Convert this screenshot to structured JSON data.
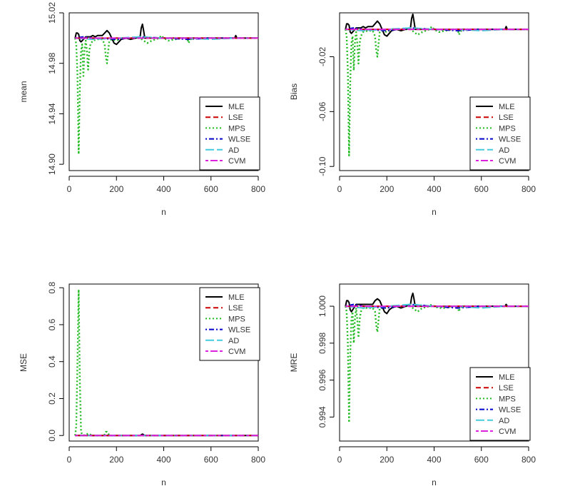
{
  "series_styles": [
    {
      "name": "MLE",
      "color": "#000000",
      "dash": "solid"
    },
    {
      "name": "LSE",
      "color": "#cc0000",
      "dash": "dashed"
    },
    {
      "name": "MPS",
      "color": "#22bb22",
      "dash": "dotted"
    },
    {
      "name": "WLSE",
      "color": "#0000cc",
      "dash": "dotdash"
    },
    {
      "name": "AD",
      "color": "#44ccdd",
      "dash": "longdash"
    },
    {
      "name": "CVM",
      "color": "#dd22dd",
      "dash": "twodash"
    }
  ],
  "chart_data": [
    {
      "type": "line",
      "xlabel": "n",
      "ylabel": "mean",
      "xlim": [
        0,
        800
      ],
      "ylim": [
        14.895,
        15.02
      ],
      "xticks": [
        0,
        200,
        400,
        600,
        800
      ],
      "yticks": [
        14.9,
        14.94,
        14.98,
        15.02
      ],
      "ytick_labels": [
        "14.90",
        "14.94",
        "14.98",
        "15.02"
      ],
      "reference": 15.0,
      "legend_position": "bottom-right",
      "series": [
        {
          "name": "MLE",
          "x": [
            25,
            30,
            35,
            40,
            45,
            50,
            60,
            70,
            80,
            90,
            100,
            110,
            120,
            140,
            150,
            160,
            170,
            180,
            190,
            200,
            210,
            220,
            240,
            260,
            280,
            300,
            305,
            310,
            315,
            320,
            340,
            360,
            380,
            400,
            450,
            500,
            550,
            600,
            650,
            700,
            705,
            710,
            750,
            800
          ],
          "y": [
            15.0,
            15.004,
            15.004,
            15.003,
            14.998,
            14.997,
            14.999,
            15.001,
            15.001,
            15.001,
            15.002,
            15.001,
            15.002,
            15.002,
            15.004,
            15.006,
            15.004,
            15.0,
            14.996,
            14.995,
            14.997,
            14.999,
            15.0,
            14.999,
            15.0,
            15.001,
            15.008,
            15.011,
            15.006,
            15.0,
            15.0,
            15.0,
            15.0,
            15.0,
            15.0,
            15.0,
            15.0,
            15.0,
            15.0,
            15.0,
            15.002,
            15.0,
            15.0,
            15.0
          ]
        },
        {
          "name": "LSE",
          "x": [
            25,
            800
          ],
          "y": [
            15.0,
            15.0
          ]
        },
        {
          "name": "MPS",
          "x": [
            25,
            30,
            35,
            40,
            45,
            50,
            55,
            60,
            65,
            70,
            75,
            80,
            85,
            90,
            100,
            120,
            140,
            150,
            155,
            160,
            165,
            170,
            180,
            200,
            220,
            250,
            300,
            330,
            350,
            380,
            390,
            400,
            420,
            450,
            480,
            500,
            505,
            510,
            520,
            550,
            600,
            650,
            700,
            750,
            800
          ],
          "y": [
            15.0,
            14.995,
            14.97,
            14.908,
            14.96,
            14.99,
            14.995,
            14.97,
            14.99,
            14.998,
            14.99,
            14.975,
            14.99,
            14.995,
            14.998,
            14.999,
            14.999,
            14.995,
            14.985,
            14.98,
            14.99,
            14.998,
            14.999,
            14.998,
            15.0,
            15.0,
            15.0,
            14.996,
            14.998,
            15.0,
            15.002,
            15.0,
            14.998,
            14.999,
            15.0,
            15.0,
            14.996,
            14.998,
            15.0,
            15.0,
            15.0,
            15.0,
            15.0,
            15.0,
            15.0
          ]
        },
        {
          "name": "WLSE",
          "x": [
            25,
            60,
            100,
            200,
            300,
            400,
            500,
            600,
            700,
            800
          ],
          "y": [
            15.0,
            15.001,
            15.0,
            14.999,
            15.001,
            15.0,
            14.999,
            15.0,
            15.0,
            15.0
          ]
        },
        {
          "name": "AD",
          "x": [
            25,
            100,
            200,
            300,
            400,
            500,
            600,
            700,
            800
          ],
          "y": [
            15.0,
            14.999,
            15.0,
            15.001,
            15.0,
            15.0,
            14.999,
            15.0,
            15.0
          ]
        },
        {
          "name": "CVM",
          "x": [
            25,
            800
          ],
          "y": [
            15.0,
            15.0
          ]
        }
      ]
    },
    {
      "type": "line",
      "xlabel": "n",
      "ylabel": "Bias",
      "xlim": [
        0,
        800
      ],
      "ylim": [
        -0.103,
        0.012
      ],
      "xticks": [
        0,
        200,
        400,
        600,
        800
      ],
      "yticks": [
        -0.1,
        -0.06,
        -0.02
      ],
      "ytick_labels": [
        "-0.10",
        "-0.06",
        "-0.02"
      ],
      "reference": 0.0,
      "legend_position": "bottom-right",
      "series": [
        {
          "name": "MLE",
          "x": [
            25,
            30,
            35,
            40,
            45,
            50,
            60,
            70,
            80,
            90,
            100,
            110,
            120,
            140,
            150,
            160,
            170,
            180,
            190,
            200,
            210,
            220,
            240,
            260,
            280,
            300,
            305,
            310,
            315,
            320,
            340,
            360,
            380,
            400,
            450,
            500,
            550,
            600,
            650,
            700,
            705,
            710,
            750,
            800
          ],
          "y": [
            0.0,
            0.004,
            0.004,
            0.003,
            -0.002,
            -0.003,
            -0.001,
            0.001,
            0.001,
            0.001,
            0.002,
            0.001,
            0.002,
            0.002,
            0.004,
            0.006,
            0.004,
            0.0,
            -0.004,
            -0.005,
            -0.003,
            -0.001,
            0.0,
            -0.001,
            0.0,
            0.001,
            0.008,
            0.011,
            0.006,
            0.0,
            0.0,
            0.0,
            0.0,
            0.0,
            0.0,
            0.0,
            0.0,
            0.0,
            0.0,
            0.0,
            0.002,
            0.0,
            0.0,
            0.0
          ]
        },
        {
          "name": "LSE",
          "x": [
            25,
            800
          ],
          "y": [
            0.0,
            0.0
          ]
        },
        {
          "name": "MPS",
          "x": [
            25,
            30,
            35,
            40,
            45,
            50,
            55,
            60,
            65,
            70,
            75,
            80,
            85,
            90,
            100,
            120,
            140,
            150,
            155,
            160,
            165,
            170,
            180,
            200,
            220,
            250,
            300,
            330,
            350,
            380,
            390,
            400,
            420,
            450,
            480,
            500,
            505,
            510,
            520,
            550,
            600,
            650,
            700,
            750,
            800
          ],
          "y": [
            0.0,
            -0.005,
            -0.03,
            -0.092,
            -0.04,
            -0.01,
            -0.005,
            -0.03,
            -0.01,
            -0.002,
            -0.01,
            -0.025,
            -0.01,
            -0.005,
            -0.002,
            -0.001,
            -0.001,
            -0.005,
            -0.015,
            -0.02,
            -0.01,
            -0.002,
            -0.001,
            -0.002,
            0.0,
            0.0,
            0.0,
            -0.004,
            -0.002,
            0.0,
            0.002,
            0.0,
            -0.002,
            -0.001,
            0.0,
            0.0,
            -0.004,
            -0.002,
            0.0,
            0.0,
            0.0,
            0.0,
            0.0,
            0.0,
            0.0
          ]
        },
        {
          "name": "WLSE",
          "x": [
            25,
            60,
            100,
            200,
            300,
            400,
            500,
            600,
            700,
            800
          ],
          "y": [
            0.0,
            0.001,
            0.0,
            -0.001,
            0.001,
            0.0,
            -0.001,
            0.0,
            0.0,
            0.0
          ]
        },
        {
          "name": "AD",
          "x": [
            25,
            100,
            200,
            300,
            400,
            500,
            600,
            700,
            800
          ],
          "y": [
            0.0,
            -0.001,
            0.0,
            0.001,
            0.0,
            0.0,
            -0.001,
            0.0,
            0.0
          ]
        },
        {
          "name": "CVM",
          "x": [
            25,
            800
          ],
          "y": [
            0.0,
            0.0
          ]
        }
      ]
    },
    {
      "type": "line",
      "xlabel": "n",
      "ylabel": "MSE",
      "xlim": [
        0,
        800
      ],
      "ylim": [
        -0.03,
        0.82
      ],
      "xticks": [
        0,
        200,
        400,
        600,
        800
      ],
      "yticks": [
        0.0,
        0.2,
        0.4,
        0.6,
        0.8
      ],
      "ytick_labels": [
        "0.0",
        "0.2",
        "0.4",
        "0.6",
        "0.8"
      ],
      "reference": 0.0,
      "legend_position": "top-right",
      "series": [
        {
          "name": "MLE",
          "x": [
            25,
            100,
            200,
            300,
            305,
            310,
            315,
            320,
            400,
            500,
            600,
            700,
            800
          ],
          "y": [
            0.001,
            0.0,
            0.0,
            0.0,
            0.004,
            0.008,
            0.004,
            0.0,
            0.0,
            0.0,
            0.0,
            0.0,
            0.0
          ]
        },
        {
          "name": "LSE",
          "x": [
            25,
            800
          ],
          "y": [
            0.0,
            0.0
          ]
        },
        {
          "name": "MPS",
          "x": [
            25,
            30,
            35,
            40,
            45,
            50,
            55,
            60,
            70,
            80,
            90,
            100,
            140,
            150,
            155,
            160,
            165,
            170,
            200,
            300,
            400,
            500,
            600,
            700,
            800
          ],
          "y": [
            0.0,
            0.05,
            0.4,
            0.79,
            0.3,
            0.02,
            0.005,
            0.0,
            0.005,
            0.01,
            0.005,
            0.0,
            0.0,
            0.005,
            0.02,
            0.02,
            0.01,
            0.0,
            0.0,
            0.0,
            0.0,
            0.0,
            0.0,
            0.0,
            0.0
          ]
        },
        {
          "name": "WLSE",
          "x": [
            25,
            800
          ],
          "y": [
            0.0,
            0.0
          ]
        },
        {
          "name": "AD",
          "x": [
            25,
            800
          ],
          "y": [
            0.0,
            0.0
          ]
        },
        {
          "name": "CVM",
          "x": [
            25,
            800
          ],
          "y": [
            0.0,
            0.0
          ]
        }
      ]
    },
    {
      "type": "line",
      "xlabel": "n",
      "ylabel": "MRE",
      "xlim": [
        0,
        800
      ],
      "ylim": [
        0.9927,
        1.0012
      ],
      "xticks": [
        0,
        200,
        400,
        600,
        800
      ],
      "yticks": [
        0.994,
        0.996,
        0.998,
        1.0
      ],
      "ytick_labels": [
        "0.994",
        "0.996",
        "0.998",
        "1.000"
      ],
      "reference": 1.0,
      "legend_position": "bottom-right",
      "series": [
        {
          "name": "MLE",
          "x": [
            25,
            30,
            35,
            40,
            45,
            50,
            60,
            70,
            80,
            90,
            100,
            110,
            120,
            140,
            150,
            160,
            170,
            180,
            190,
            200,
            210,
            220,
            240,
            260,
            280,
            300,
            305,
            310,
            315,
            320,
            340,
            360,
            380,
            400,
            450,
            500,
            550,
            600,
            650,
            700,
            705,
            710,
            750,
            800
          ],
          "y": [
            1.0,
            1.0003,
            1.0003,
            1.0002,
            0.9998,
            0.9997,
            0.9999,
            1.0001,
            1.0001,
            1.0001,
            1.0001,
            1.0001,
            1.0001,
            1.0001,
            1.0003,
            1.0004,
            1.0003,
            1.0,
            0.9997,
            0.9996,
            0.9998,
            0.9999,
            1.0,
            0.9999,
            1.0,
            1.0001,
            1.0005,
            1.0007,
            1.0004,
            1.0,
            1.0,
            1.0,
            1.0,
            1.0,
            1.0,
            1.0,
            1.0,
            1.0,
            1.0,
            1.0,
            1.0001,
            1.0,
            1.0,
            1.0
          ]
        },
        {
          "name": "LSE",
          "x": [
            25,
            800
          ],
          "y": [
            1.0,
            1.0
          ]
        },
        {
          "name": "MPS",
          "x": [
            25,
            30,
            35,
            40,
            45,
            50,
            55,
            60,
            65,
            70,
            75,
            80,
            85,
            90,
            100,
            120,
            140,
            150,
            155,
            160,
            165,
            170,
            180,
            200,
            220,
            250,
            300,
            330,
            350,
            380,
            390,
            400,
            420,
            450,
            480,
            500,
            505,
            510,
            520,
            550,
            600,
            650,
            700,
            750,
            800
          ],
          "y": [
            1.0,
            0.9997,
            0.998,
            0.9937,
            0.9973,
            0.9993,
            0.9997,
            0.998,
            0.9993,
            0.9999,
            0.9993,
            0.9983,
            0.9993,
            0.9997,
            0.9999,
            0.9999,
            0.9999,
            0.9997,
            0.999,
            0.9986,
            0.9993,
            0.9999,
            0.9999,
            0.9999,
            1.0,
            1.0,
            1.0,
            0.9997,
            0.9999,
            1.0,
            1.0001,
            1.0,
            0.9999,
            0.9999,
            1.0,
            1.0,
            0.9997,
            0.9999,
            1.0,
            1.0,
            1.0,
            1.0,
            1.0,
            1.0,
            1.0
          ]
        },
        {
          "name": "WLSE",
          "x": [
            25,
            60,
            100,
            200,
            300,
            400,
            500,
            600,
            700,
            800
          ],
          "y": [
            1.0,
            1.0001,
            1.0,
            0.9999,
            1.0001,
            1.0,
            0.9999,
            1.0,
            1.0,
            1.0
          ]
        },
        {
          "name": "AD",
          "x": [
            25,
            100,
            200,
            300,
            400,
            500,
            600,
            700,
            800
          ],
          "y": [
            1.0,
            0.9999,
            1.0,
            1.0001,
            1.0,
            1.0,
            0.9999,
            1.0,
            1.0
          ]
        },
        {
          "name": "CVM",
          "x": [
            25,
            800
          ],
          "y": [
            1.0,
            1.0
          ]
        }
      ]
    }
  ]
}
